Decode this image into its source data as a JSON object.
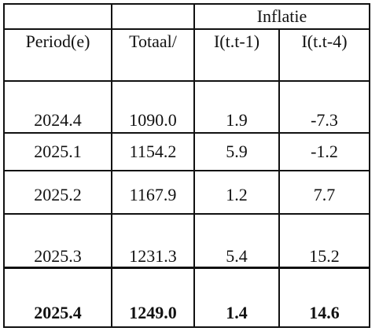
{
  "table": {
    "group_header": "Inflatie",
    "columns": [
      "Period(e)",
      "Totaal/",
      "I(t.t-1)",
      "I(t.t-4)"
    ],
    "rows": [
      {
        "period": "2024.4",
        "total": "1090.0",
        "inf_q": "1.9",
        "inf_y": "-7.3",
        "bold": false
      },
      {
        "period": "2025.1",
        "total": "1154.2",
        "inf_q": "5.9",
        "inf_y": "-1.2",
        "bold": false
      },
      {
        "period": "2025.2",
        "total": "1167.9",
        "inf_q": "1.2",
        "inf_y": "7.7",
        "bold": false
      },
      {
        "period": "2025.3",
        "total": "1231.3",
        "inf_q": "5.4",
        "inf_y": "15.2",
        "bold": false
      },
      {
        "period": "2025.4",
        "total": "1249.0",
        "inf_q": "1.4",
        "inf_y": "14.6",
        "bold": true
      }
    ]
  }
}
